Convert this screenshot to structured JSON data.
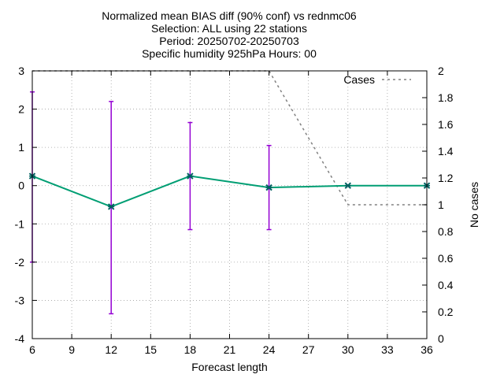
{
  "chart_data": {
    "type": "line",
    "title_lines": [
      "Normalized mean BIAS diff (90% conf) vs rednmc06",
      "Selection: ALL using    22 stations",
      "Period: 20250702-20250703",
      "Specific humidity 925hPa   Hours: 00"
    ],
    "xlabel": "Forecast length",
    "ylabel": "",
    "y2label": "No cases",
    "xlim": [
      6,
      36
    ],
    "ylim": [
      -4,
      3
    ],
    "y2lim": [
      0,
      2
    ],
    "xticks": [
      6,
      9,
      12,
      15,
      18,
      21,
      24,
      27,
      30,
      33,
      36
    ],
    "yticks": [
      3,
      2,
      1,
      0,
      -1,
      -2,
      -3,
      -4
    ],
    "y2ticks": [
      2,
      1.8,
      1.6,
      1.4,
      1.2,
      1,
      0.8,
      0.6,
      0.4,
      0.2,
      0
    ],
    "grid": true,
    "legend_position": "top-right",
    "series": [
      {
        "color": "#009e73",
        "marker_color": "#006060",
        "x": [
          6,
          12,
          18,
          24,
          30,
          36
        ],
        "y": [
          0.25,
          -0.55,
          0.25,
          -0.05,
          0.0,
          0.0
        ]
      },
      {
        "name": "Cases",
        "axis": "y2",
        "color": "#808080",
        "dash": true,
        "x": [
          6,
          12,
          18,
          24,
          30,
          36
        ],
        "y": [
          2,
          2,
          2,
          2,
          1,
          1
        ]
      }
    ],
    "error_bars": {
      "color": "#9400d3",
      "x": [
        6,
        12,
        18,
        24
      ],
      "low": [
        -2.0,
        -3.35,
        -1.15,
        -1.15
      ],
      "high": [
        2.45,
        2.2,
        1.65,
        1.05
      ]
    }
  }
}
